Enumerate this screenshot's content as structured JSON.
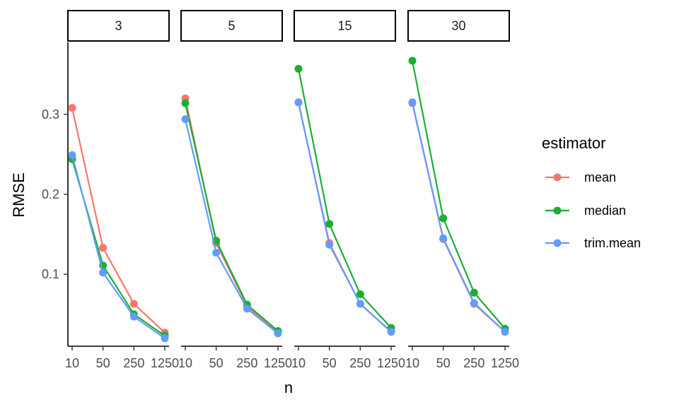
{
  "chart_data": {
    "type": "line",
    "xlabel": "n",
    "ylabel": "RMSE",
    "x": [
      10,
      50,
      250,
      1250
    ],
    "x_tick_labels": [
      "10",
      "50",
      "250",
      "1250"
    ],
    "y_ticks": [
      0.1,
      0.2,
      0.3
    ],
    "y_tick_labels": [
      "0.1",
      "0.2",
      "0.3"
    ],
    "ylim": [
      0.01,
      0.39
    ],
    "x_scale": "log",
    "grid": false,
    "legend": {
      "title": "estimator",
      "position": "right"
    },
    "facets": [
      {
        "label": "3",
        "series": [
          {
            "name": "mean",
            "values": [
              0.308,
              0.133,
              0.063,
              0.027
            ]
          },
          {
            "name": "median",
            "values": [
              0.244,
              0.111,
              0.05,
              0.023
            ]
          },
          {
            "name": "trim.mean",
            "values": [
              0.249,
              0.102,
              0.047,
              0.02
            ]
          }
        ]
      },
      {
        "label": "5",
        "series": [
          {
            "name": "mean",
            "values": [
              0.32,
              0.139,
              0.06,
              0.027
            ]
          },
          {
            "name": "median",
            "values": [
              0.314,
              0.142,
              0.062,
              0.029
            ]
          },
          {
            "name": "trim.mean",
            "values": [
              0.294,
              0.127,
              0.057,
              0.026
            ]
          }
        ]
      },
      {
        "label": "15",
        "series": [
          {
            "name": "mean",
            "values": [
              0.315,
              0.139,
              0.063,
              0.028
            ]
          },
          {
            "name": "median",
            "values": [
              0.357,
              0.163,
              0.075,
              0.033
            ]
          },
          {
            "name": "trim.mean",
            "values": [
              0.315,
              0.137,
              0.063,
              0.028
            ]
          }
        ]
      },
      {
        "label": "30",
        "series": [
          {
            "name": "mean",
            "values": [
              0.314,
              0.144,
              0.063,
              0.028
            ]
          },
          {
            "name": "median",
            "values": [
              0.367,
              0.17,
              0.077,
              0.032
            ]
          },
          {
            "name": "trim.mean",
            "values": [
              0.315,
              0.145,
              0.064,
              0.028
            ]
          }
        ]
      }
    ],
    "series_colors": {
      "mean": "#F8766D",
      "median": "#1AAF34",
      "trim.mean": "#619CFF"
    },
    "draw_order": [
      "mean",
      "median",
      "trim.mean"
    ]
  }
}
